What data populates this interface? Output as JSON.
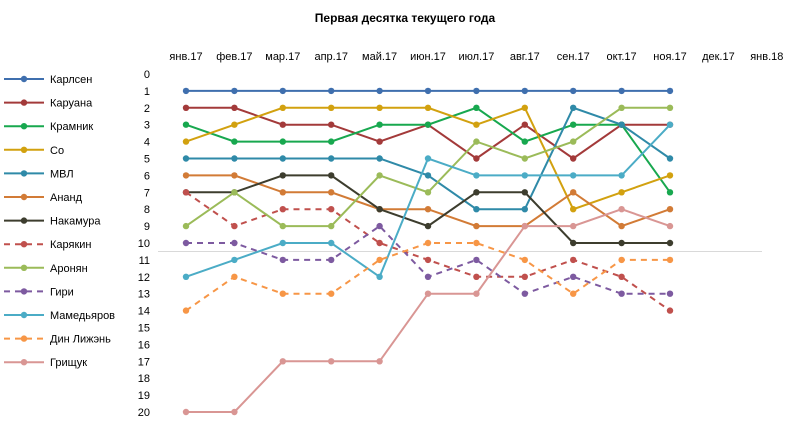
{
  "chart_data": {
    "type": "line",
    "title": "Первая десятка текущего года",
    "xlabel": "",
    "ylabel": "",
    "categories": [
      "янв.17",
      "фев.17",
      "мар.17",
      "апр.17",
      "май.17",
      "июн.17",
      "июл.17",
      "авг.17",
      "сен.17",
      "окт.17",
      "ноя.17",
      "дек.17",
      "янв.18"
    ],
    "y_ticks": [
      "0",
      "1",
      "2",
      "3",
      "4",
      "5",
      "6",
      "7",
      "8",
      "9",
      "10",
      "11",
      "12",
      "13",
      "14",
      "15",
      "16",
      "17",
      "18",
      "19",
      "20"
    ],
    "ylim": [
      0,
      20
    ],
    "y_inverted": true,
    "reference_line_y": 10.5,
    "legend_position": "left",
    "grid": false,
    "series": [
      {
        "name": "Карлсен",
        "color": "#3f6fae",
        "dashed": false,
        "values": [
          1,
          1,
          1,
          1,
          1,
          1,
          1,
          1,
          1,
          1,
          1,
          null,
          null
        ]
      },
      {
        "name": "Каруана",
        "color": "#a33a3a",
        "dashed": false,
        "values": [
          2,
          2,
          3,
          3,
          4,
          3,
          5,
          3,
          5,
          3,
          3,
          null,
          null
        ]
      },
      {
        "name": "Крамник",
        "color": "#18a84f",
        "dashed": false,
        "values": [
          3,
          4,
          4,
          4,
          3,
          3,
          2,
          4,
          3,
          3,
          7,
          null,
          null
        ]
      },
      {
        "name": "Со",
        "color": "#d2a10f",
        "dashed": false,
        "values": [
          4,
          3,
          2,
          2,
          2,
          2,
          3,
          2,
          8,
          7,
          6,
          null,
          null
        ]
      },
      {
        "name": "МВЛ",
        "color": "#2f8aa8",
        "dashed": false,
        "values": [
          5,
          5,
          5,
          5,
          5,
          6,
          8,
          8,
          2,
          3,
          5,
          null,
          null
        ]
      },
      {
        "name": "Ананд",
        "color": "#d27b36",
        "dashed": false,
        "values": [
          6,
          6,
          7,
          7,
          8,
          8,
          9,
          9,
          7,
          9,
          8,
          null,
          null
        ]
      },
      {
        "name": "Накамура",
        "color": "#3d3d2e",
        "dashed": false,
        "values": [
          7,
          7,
          6,
          6,
          8,
          9,
          7,
          7,
          10,
          10,
          10,
          null,
          null
        ]
      },
      {
        "name": "Карякин",
        "color": "#c0504d",
        "dashed": true,
        "values": [
          7,
          9,
          8,
          8,
          10,
          11,
          12,
          12,
          11,
          12,
          14,
          null,
          null
        ]
      },
      {
        "name": "Аронян",
        "color": "#9bbb59",
        "dashed": false,
        "values": [
          9,
          7,
          9,
          9,
          6,
          7,
          4,
          5,
          4,
          2,
          2,
          null,
          null
        ]
      },
      {
        "name": "Гири",
        "color": "#7d5aa0",
        "dashed": true,
        "values": [
          10,
          10,
          11,
          11,
          9,
          12,
          11,
          13,
          12,
          13,
          13,
          null,
          null
        ]
      },
      {
        "name": "Мамедьяров",
        "color": "#4bacc6",
        "dashed": false,
        "values": [
          12,
          11,
          10,
          10,
          12,
          5,
          6,
          6,
          6,
          6,
          3,
          null,
          null
        ]
      },
      {
        "name": "Дин Лижэнь",
        "color": "#f79646",
        "dashed": true,
        "values": [
          14,
          12,
          13,
          13,
          11,
          10,
          10,
          11,
          13,
          11,
          11,
          null,
          null
        ]
      },
      {
        "name": "Грищук",
        "color": "#d99694",
        "dashed": false,
        "values": [
          20,
          20,
          17,
          17,
          17,
          13,
          13,
          9,
          9,
          8,
          9,
          null,
          null
        ]
      }
    ]
  }
}
